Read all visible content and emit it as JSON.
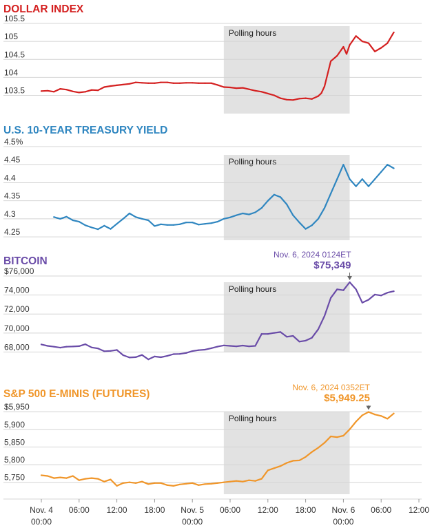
{
  "x_axis": {
    "ticks": [
      {
        "h": 0,
        "line1": "Nov. 4",
        "line2": "00:00"
      },
      {
        "h": 6,
        "line1": "06:00",
        "line2": ""
      },
      {
        "h": 12,
        "line1": "12:00",
        "line2": ""
      },
      {
        "h": 18,
        "line1": "18:00",
        "line2": ""
      },
      {
        "h": 24,
        "line1": "Nov. 5",
        "line2": "00:00"
      },
      {
        "h": 30,
        "line1": "06:00",
        "line2": ""
      },
      {
        "h": 36,
        "line1": "12:00",
        "line2": ""
      },
      {
        "h": 42,
        "line1": "18:00",
        "line2": ""
      },
      {
        "h": 48,
        "line1": "Nov. 6",
        "line2": "00:00"
      },
      {
        "h": 54,
        "line1": "06:00",
        "line2": ""
      },
      {
        "h": 60,
        "line1": "12:00",
        "line2": ""
      }
    ],
    "unit": "hours from Nov. 4 00:00",
    "xlim": [
      0,
      60
    ]
  },
  "band": {
    "label": "Polling hours",
    "start_hour": 29,
    "end_hour": 49
  },
  "chart_data": [
    {
      "type": "line",
      "title": "DOLLAR INDEX",
      "color": "#d42020",
      "ylim": [
        103.3,
        105.5
      ],
      "yticks": [
        {
          "v": 103.5,
          "label": "103.5"
        },
        {
          "v": 104,
          "label": "104"
        },
        {
          "v": 104.5,
          "label": "104.5"
        },
        {
          "v": 105,
          "label": "105"
        },
        {
          "v": 105.5,
          "label": "105.5"
        }
      ],
      "x": [
        0,
        1,
        2,
        3,
        4,
        5,
        6,
        7,
        8,
        9,
        10,
        11,
        12,
        13,
        14,
        15,
        16,
        17,
        18,
        19,
        20,
        21,
        22,
        23,
        24,
        25,
        26,
        27,
        28,
        29,
        30,
        31,
        32,
        33,
        34,
        35,
        36,
        37,
        38,
        39,
        40,
        41,
        42,
        43,
        44,
        44.5,
        45,
        46,
        47,
        48,
        48.5,
        49,
        50,
        51,
        52,
        53,
        54,
        55,
        56
      ],
      "values": [
        103.62,
        103.63,
        103.6,
        103.68,
        103.66,
        103.61,
        103.58,
        103.6,
        103.65,
        103.64,
        103.73,
        103.76,
        103.78,
        103.8,
        103.82,
        103.86,
        103.85,
        103.84,
        103.84,
        103.86,
        103.86,
        103.84,
        103.84,
        103.85,
        103.85,
        103.84,
        103.84,
        103.84,
        103.79,
        103.73,
        103.72,
        103.7,
        103.71,
        103.67,
        103.63,
        103.6,
        103.55,
        103.5,
        103.42,
        103.38,
        103.37,
        103.41,
        103.42,
        103.4,
        103.48,
        103.56,
        103.75,
        104.45,
        104.6,
        104.85,
        104.65,
        104.9,
        105.15,
        105.0,
        104.95,
        104.72,
        104.82,
        104.95,
        105.25
      ]
    },
    {
      "type": "line",
      "title": "U.S. 10-YEAR TREASURY YIELD",
      "color": "#2f86c0",
      "ylim": [
        4.235,
        4.5
      ],
      "yticks": [
        {
          "v": 4.25,
          "label": "4.25"
        },
        {
          "v": 4.3,
          "label": "4.3"
        },
        {
          "v": 4.35,
          "label": "4.35"
        },
        {
          "v": 4.4,
          "label": "4.4"
        },
        {
          "v": 4.45,
          "label": "4.45"
        },
        {
          "v": 4.5,
          "label": "4.5%"
        }
      ],
      "x": [
        2,
        3,
        4,
        5,
        6,
        7,
        8,
        9,
        10,
        11,
        12,
        13,
        14,
        15,
        16,
        17,
        18,
        19,
        20,
        21,
        22,
        23,
        24,
        25,
        26,
        27,
        28,
        29,
        30,
        31,
        32,
        33,
        34,
        35,
        36,
        37,
        38,
        39,
        40,
        41,
        42,
        43,
        44,
        45,
        46,
        47,
        48,
        49,
        50,
        51,
        52,
        53,
        54,
        55,
        56
      ],
      "values": [
        4.305,
        4.3,
        4.306,
        4.296,
        4.292,
        4.282,
        4.276,
        4.271,
        4.281,
        4.272,
        4.286,
        4.3,
        4.315,
        4.305,
        4.3,
        4.296,
        4.28,
        4.285,
        4.283,
        4.283,
        4.285,
        4.29,
        4.29,
        4.284,
        4.286,
        4.288,
        4.292,
        4.3,
        4.304,
        4.31,
        4.315,
        4.312,
        4.318,
        4.33,
        4.35,
        4.367,
        4.36,
        4.34,
        4.31,
        4.29,
        4.272,
        4.282,
        4.3,
        4.33,
        4.37,
        4.41,
        4.45,
        4.41,
        4.39,
        4.41,
        4.39,
        4.41,
        4.43,
        4.45,
        4.44
      ]
    },
    {
      "type": "line",
      "title": "BITCOIN",
      "color": "#6a4ca8",
      "ylim": [
        66800,
        76000
      ],
      "yticks": [
        {
          "v": 68000,
          "label": "68,000"
        },
        {
          "v": 70000,
          "label": "70,000"
        },
        {
          "v": 72000,
          "label": "72,000"
        },
        {
          "v": 74000,
          "label": "74,000"
        },
        {
          "v": 76000,
          "label": "$76,000"
        }
      ],
      "x": [
        0,
        1,
        2,
        3,
        4,
        5,
        6,
        7,
        8,
        9,
        10,
        11,
        12,
        13,
        14,
        15,
        16,
        17,
        18,
        19,
        20,
        21,
        22,
        23,
        24,
        25,
        26,
        27,
        28,
        29,
        30,
        31,
        32,
        33,
        34,
        35,
        36,
        37,
        38,
        39,
        40,
        41,
        42,
        43,
        44,
        45,
        46,
        47,
        48,
        49,
        50,
        51,
        52,
        53,
        54,
        55,
        56
      ],
      "values": [
        68800,
        68650,
        68560,
        68460,
        68560,
        68580,
        68620,
        68820,
        68480,
        68380,
        68080,
        68120,
        68220,
        67670,
        67420,
        67460,
        67690,
        67230,
        67530,
        67450,
        67590,
        67780,
        67800,
        67900,
        68100,
        68200,
        68250,
        68400,
        68570,
        68700,
        68650,
        68600,
        68680,
        68600,
        68650,
        69900,
        69900,
        70020,
        70100,
        69600,
        69700,
        69100,
        69200,
        69500,
        70400,
        71800,
        73700,
        74600,
        74500,
        75349,
        74600,
        73200,
        73500,
        74050,
        73950,
        74250,
        74400
      ]
    },
    {
      "type": "line",
      "title": "S&P 500 E-MINIS (FUTURES)",
      "color": "#f0962a",
      "ylim": [
        5730,
        5960
      ],
      "yticks": [
        {
          "v": 5750,
          "label": "5,750"
        },
        {
          "v": 5800,
          "label": "5,800"
        },
        {
          "v": 5850,
          "label": "5,850"
        },
        {
          "v": 5900,
          "label": "5,900"
        },
        {
          "v": 5950,
          "label": "$5,950"
        }
      ],
      "x": [
        0,
        1,
        2,
        3,
        4,
        5,
        6,
        7,
        8,
        9,
        10,
        11,
        12,
        13,
        14,
        15,
        16,
        17,
        18,
        19,
        20,
        21,
        22,
        23,
        24,
        25,
        26,
        27,
        28,
        29,
        30,
        31,
        32,
        33,
        34,
        35,
        36,
        37,
        38,
        39,
        40,
        41,
        42,
        43,
        44,
        45,
        46,
        47,
        48,
        49,
        50,
        51,
        52,
        53,
        54,
        55,
        56
      ],
      "values": [
        5770,
        5768,
        5762,
        5764,
        5762,
        5768,
        5756,
        5760,
        5762,
        5760,
        5752,
        5758,
        5740,
        5748,
        5750,
        5748,
        5752,
        5745,
        5748,
        5748,
        5742,
        5740,
        5744,
        5746,
        5748,
        5742,
        5745,
        5746,
        5748,
        5750,
        5752,
        5754,
        5752,
        5756,
        5754,
        5760,
        5784,
        5790,
        5796,
        5805,
        5811,
        5812,
        5822,
        5836,
        5848,
        5862,
        5880,
        5878,
        5882,
        5900,
        5922,
        5940,
        5949.25,
        5942,
        5938,
        5930,
        5945
      ]
    }
  ],
  "annotations": [
    {
      "chart": 2,
      "date": "Nov. 6, 2024 0124ET",
      "value": "$75,349",
      "x": 49,
      "y": 75349
    },
    {
      "chart": 3,
      "date": "Nov. 6, 2024 0352ET",
      "value": "$5,949.25",
      "x": 52,
      "y": 5949.25
    }
  ]
}
